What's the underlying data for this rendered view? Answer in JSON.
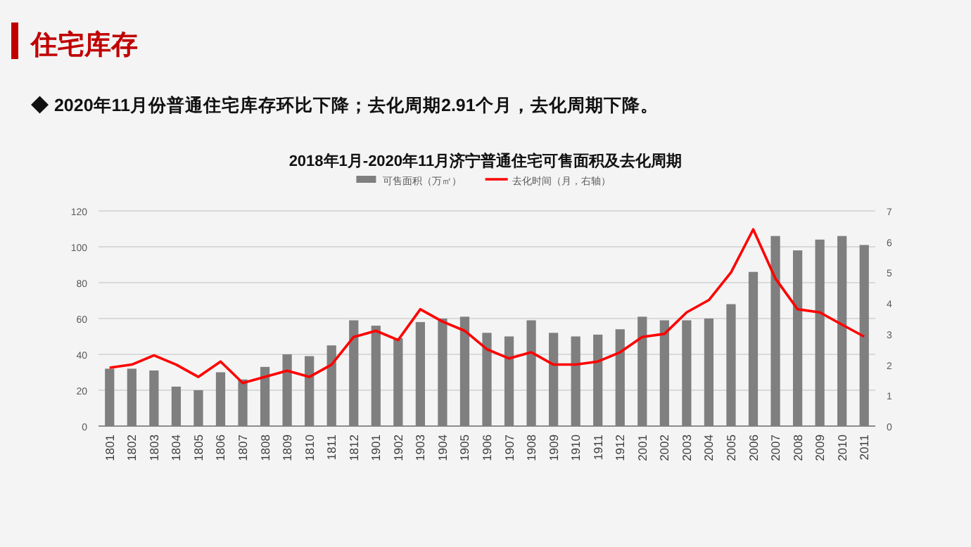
{
  "chart_data": {
    "type": "bar",
    "title": "2018年1月-2020年11月济宁普通住宅可售面积及去化周期",
    "annotations": [
      "住宅库存",
      "◆  2020年11月份普通住宅库存环比下降；去化周期2.91个月，去化周期下降。"
    ],
    "categories": [
      "1801",
      "1802",
      "1803",
      "1804",
      "1805",
      "1806",
      "1807",
      "1808",
      "1809",
      "1810",
      "1811",
      "1812",
      "1901",
      "1902",
      "1903",
      "1904",
      "1905",
      "1906",
      "1907",
      "1908",
      "1909",
      "1910",
      "1911",
      "1912",
      "2001",
      "2002",
      "2003",
      "2004",
      "2005",
      "2006",
      "2007",
      "2008",
      "2009",
      "2010",
      "2011"
    ],
    "series": [
      {
        "name": "可售面积（万㎡）",
        "color": "#7f7f7f",
        "values": [
          32,
          32,
          31,
          22,
          20,
          30,
          26,
          33,
          40,
          39,
          45,
          59,
          56,
          49,
          58,
          60,
          61,
          52,
          50,
          59,
          52,
          50,
          51,
          54,
          61,
          59,
          59,
          60,
          68,
          86,
          106,
          98,
          104,
          106,
          101
        ]
      },
      {
        "name": "去化时间（月，右轴）",
        "type": "line",
        "axis": "y2",
        "color": "#ff0000",
        "values": [
          1.9,
          2.0,
          2.3,
          2.0,
          1.6,
          2.1,
          1.4,
          1.6,
          1.8,
          1.6,
          2.0,
          2.9,
          3.1,
          2.8,
          3.8,
          3.4,
          3.1,
          2.5,
          2.2,
          2.4,
          2.0,
          2.0,
          2.1,
          2.4,
          2.9,
          3.0,
          3.7,
          4.1,
          5.0,
          6.4,
          4.8,
          3.8,
          3.7,
          3.3,
          2.91
        ]
      }
    ],
    "ylim": [
      0,
      120
    ],
    "yticks": [
      0,
      20,
      40,
      60,
      80,
      100,
      120
    ],
    "y2lim": [
      0,
      7
    ],
    "y2ticks": [
      0,
      1,
      2,
      3,
      4,
      5,
      6,
      7
    ],
    "grid": "y",
    "legend": "top",
    "marker": "none",
    "line_style": "solid"
  }
}
